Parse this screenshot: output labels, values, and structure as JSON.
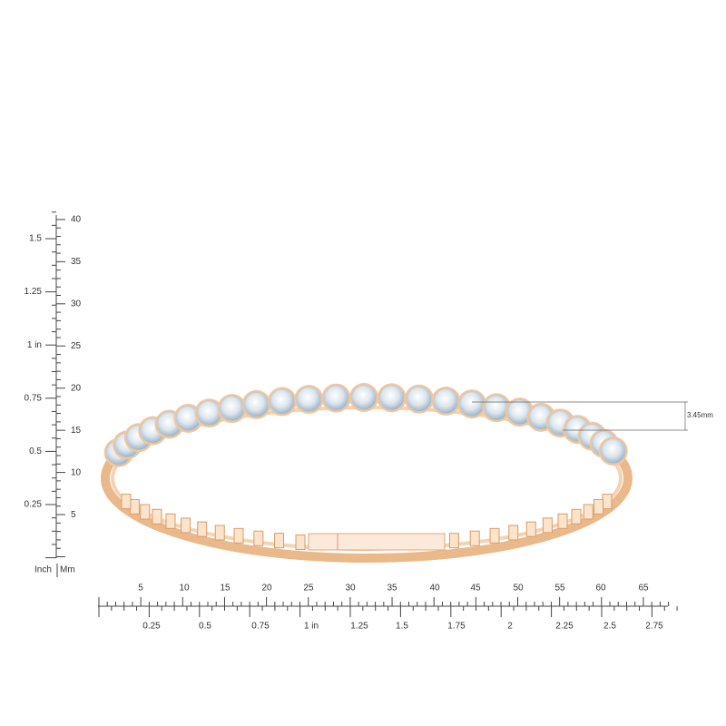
{
  "vertical_ruler": {
    "inch_labels": [
      "1.5",
      "1.25",
      "1 in",
      "0.75",
      "0.5",
      "0.25"
    ],
    "mm_labels": [
      "40",
      "35",
      "30",
      "25",
      "20",
      "15",
      "10",
      "5"
    ],
    "inch_caption": "Inch",
    "mm_caption": "Mm"
  },
  "horizontal_ruler": {
    "mm_labels": [
      "5",
      "10",
      "15",
      "20",
      "25",
      "30",
      "35",
      "40",
      "45",
      "50",
      "55",
      "60",
      "65"
    ],
    "inch_labels": [
      "0.25",
      "0.5",
      "0.75",
      "1 in",
      "1.25",
      "1.5",
      "1.75",
      "2",
      "2.25",
      "2.5",
      "2.75"
    ]
  },
  "dimension": {
    "label": "3.45mm"
  }
}
